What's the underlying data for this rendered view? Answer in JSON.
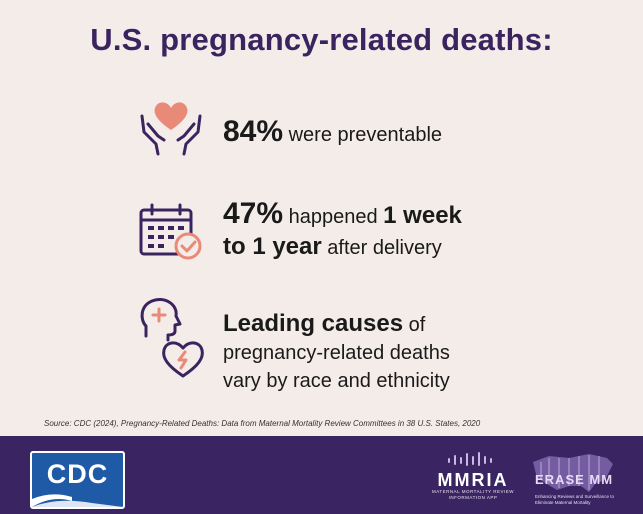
{
  "title": "U.S. pregnancy-related deaths:",
  "stats": [
    {
      "icon": "hands-heart-icon",
      "value": "84%",
      "text": "were preventable"
    },
    {
      "icon": "calendar-check-icon",
      "value": "47%",
      "text_a": "happened",
      "bold_b": "1 week",
      "bold_c": "to 1 year",
      "text_d": "after delivery"
    },
    {
      "icon": "head-heart-icon",
      "bold": "Leading causes",
      "line1_rest": "of",
      "line2": "pregnancy-related deaths",
      "line3": "vary by race and ethnicity"
    }
  ],
  "source": "Source: CDC (2024), Pregnancy-Related Deaths: Data from Maternal Mortality Review Committees in 38 U.S. States, 2020",
  "footer": {
    "cdc_logo": "CDC",
    "mmria_name": "MMRIA",
    "mmria_sub": "MATERNAL MORTALITY REVIEW INFORMATION APP",
    "erase_name": "ERASE MM",
    "erase_sub": "Enhancing Reviews and Surveillance to Eliminate Maternal Mortality"
  },
  "colors": {
    "title": "#3b2360",
    "icon_purple": "#3b2360",
    "icon_accent": "#e98a78",
    "footer_bg": "#3a2562",
    "cdc_blue": "#1f5aa6"
  }
}
